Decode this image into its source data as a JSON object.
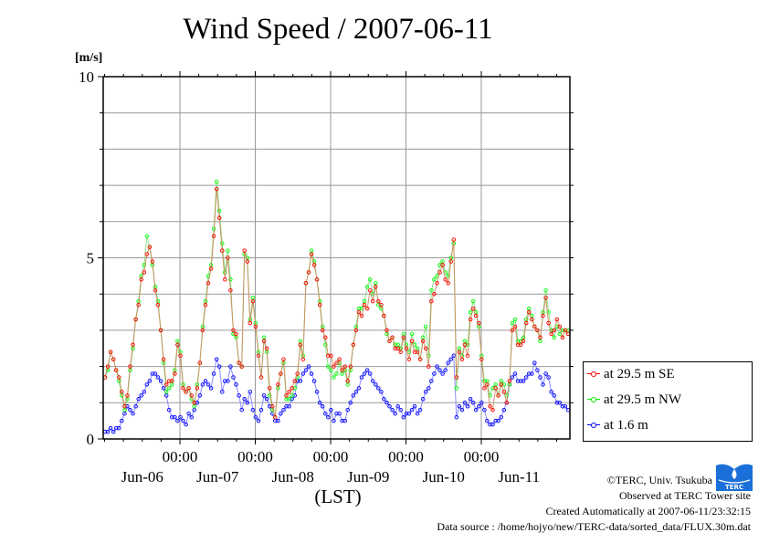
{
  "chart_data": {
    "type": "line",
    "title": "Wind Speed / 2007-06-11",
    "ylabel": "[m/s]",
    "xlabel": "(LST)",
    "ylim": [
      0,
      10
    ],
    "yticks": [
      0,
      5,
      10
    ],
    "x_unit": "hours since Jun-06 00:00",
    "xlim": [
      0,
      150
    ],
    "x_major_ticks": [
      {
        "hour": 24,
        "label": "00:00"
      },
      {
        "hour": 48,
        "label": "00:00"
      },
      {
        "hour": 72,
        "label": "00:00"
      },
      {
        "hour": 96,
        "label": "00:00"
      },
      {
        "hour": 120,
        "label": "00:00"
      }
    ],
    "day_labels": [
      {
        "hour": 10,
        "label": "Jun-06"
      },
      {
        "hour": 34,
        "label": "Jun-07"
      },
      {
        "hour": 58,
        "label": "Jun-08"
      },
      {
        "hour": 82,
        "label": "Jun-09"
      },
      {
        "hour": 106,
        "label": "Jun-10"
      },
      {
        "hour": 130,
        "label": "Jun-11"
      }
    ],
    "grid": true,
    "legend_position": "right-bottom-outside",
    "series": [
      {
        "name": "at 29.5 m SE",
        "color": "#ff0000",
        "values": [
          1.7,
          2.0,
          2.4,
          2.2,
          1.9,
          1.7,
          1.3,
          0.9,
          1.2,
          2.0,
          2.6,
          3.3,
          3.7,
          4.4,
          4.6,
          5.1,
          5.3,
          4.9,
          4.1,
          3.7,
          3.0,
          2.2,
          1.5,
          1.6,
          1.6,
          1.8,
          2.6,
          2.3,
          1.4,
          1.3,
          1.4,
          1.2,
          1.0,
          1.4,
          2.1,
          3.0,
          3.7,
          4.3,
          4.7,
          5.6,
          6.9,
          6.1,
          5.2,
          4.4,
          5.0,
          4.1,
          3.0,
          2.9,
          2.1,
          2.0,
          5.2,
          4.9,
          3.2,
          3.8,
          3.1,
          2.3,
          1.7,
          2.7,
          2.5,
          1.4,
          0.9,
          0.6,
          1.5,
          1.8,
          2.2,
          1.2,
          1.3,
          1.4,
          1.6,
          1.8,
          2.6,
          2.2,
          4.3,
          4.6,
          5.1,
          4.8,
          4.4,
          3.7,
          3.0,
          2.8,
          2.3,
          2.3,
          2.0,
          2.1,
          2.2,
          1.9,
          2.0,
          1.6,
          2.0,
          2.6,
          3.0,
          3.5,
          3.4,
          3.7,
          3.6,
          4.1,
          3.8,
          4.2,
          3.8,
          3.7,
          3.4,
          3.0,
          2.7,
          2.8,
          2.5,
          2.5,
          2.4,
          2.8,
          2.5,
          2.2,
          2.7,
          2.4,
          2.4,
          2.2,
          2.7,
          2.5,
          2.0,
          3.8,
          4.0,
          4.3,
          4.6,
          4.8,
          4.4,
          4.3,
          4.9,
          5.5,
          1.7,
          2.4,
          2.2,
          2.6,
          2.3,
          3.3,
          3.6,
          3.4,
          3.2,
          2.2,
          1.4,
          1.5,
          0.9,
          0.8,
          1.4,
          1.2,
          1.5,
          1.3,
          1.0,
          1.6,
          3.0,
          3.1,
          2.6,
          2.6,
          2.7,
          3.2,
          3.5,
          3.3,
          3.1,
          3.0,
          2.8,
          3.4,
          3.9,
          3.2,
          2.9,
          3.0,
          3.3,
          3.1,
          2.8,
          3.0,
          2.9
        ]
      },
      {
        "name": "at 29.5 m NW",
        "color": "#00ff00",
        "values": [
          1.7,
          1.9,
          2.4,
          2.2,
          1.9,
          1.6,
          1.2,
          0.8,
          1.1,
          1.9,
          2.5,
          3.3,
          3.8,
          4.5,
          4.8,
          5.6,
          5.3,
          4.8,
          4.2,
          3.8,
          3.0,
          2.1,
          1.3,
          1.4,
          1.5,
          1.9,
          2.7,
          2.4,
          1.5,
          1.3,
          1.4,
          1.1,
          0.9,
          1.5,
          2.1,
          3.1,
          3.8,
          4.5,
          4.8,
          5.8,
          7.1,
          6.3,
          5.4,
          4.6,
          5.2,
          4.4,
          2.9,
          2.8,
          2.1,
          2.0,
          5.1,
          5.0,
          3.3,
          3.9,
          3.2,
          2.4,
          1.7,
          2.8,
          2.4,
          1.2,
          0.8,
          0.6,
          1.4,
          1.8,
          2.1,
          1.1,
          1.1,
          1.2,
          1.4,
          1.7,
          2.7,
          2.3,
          4.3,
          4.6,
          5.2,
          4.9,
          4.4,
          3.8,
          3.1,
          2.6,
          2.0,
          1.9,
          1.7,
          1.8,
          2.1,
          1.8,
          1.9,
          1.5,
          1.9,
          2.6,
          3.1,
          3.6,
          3.6,
          3.8,
          4.2,
          4.4,
          4.0,
          4.3,
          3.7,
          3.6,
          3.4,
          2.9,
          2.7,
          2.8,
          2.6,
          2.6,
          2.5,
          2.9,
          2.6,
          2.4,
          2.9,
          2.6,
          2.5,
          2.2,
          2.8,
          3.1,
          2.3,
          4.1,
          4.4,
          4.5,
          4.8,
          4.9,
          4.6,
          4.5,
          5.0,
          5.4,
          1.4,
          2.5,
          2.3,
          2.7,
          2.6,
          3.5,
          3.8,
          3.5,
          3.1,
          2.3,
          1.6,
          1.6,
          1.2,
          1.4,
          1.5,
          1.2,
          1.6,
          1.5,
          1.2,
          1.5,
          3.2,
          3.3,
          2.7,
          2.7,
          2.8,
          3.3,
          3.6,
          3.4,
          3.1,
          3.0,
          2.7,
          3.5,
          4.1,
          3.5,
          3.0,
          2.8,
          3.1,
          2.9,
          3.0,
          3.0,
          3.0
        ]
      },
      {
        "name": "at 1.6 m",
        "color": "#0000ff",
        "values": [
          0.2,
          0.2,
          0.3,
          0.2,
          0.3,
          0.3,
          0.5,
          0.7,
          0.9,
          0.8,
          0.7,
          0.9,
          1.1,
          1.2,
          1.3,
          1.5,
          1.6,
          1.8,
          1.8,
          1.7,
          1.6,
          1.4,
          1.2,
          0.8,
          0.6,
          0.6,
          0.5,
          0.6,
          0.5,
          0.4,
          0.7,
          0.6,
          0.8,
          1.0,
          1.2,
          1.5,
          1.6,
          1.5,
          1.4,
          1.8,
          2.2,
          2.0,
          1.3,
          1.6,
          1.6,
          2.0,
          1.7,
          1.5,
          1.2,
          0.8,
          1.1,
          1.0,
          1.3,
          0.8,
          0.6,
          0.5,
          0.8,
          1.2,
          1.1,
          0.9,
          0.7,
          0.5,
          0.5,
          0.7,
          0.8,
          0.9,
          0.9,
          1.1,
          1.2,
          1.6,
          1.6,
          1.8,
          1.9,
          2.0,
          1.8,
          1.6,
          1.3,
          1.0,
          0.9,
          0.7,
          0.6,
          0.8,
          0.5,
          0.7,
          0.7,
          0.5,
          0.5,
          0.8,
          1.0,
          1.2,
          1.3,
          1.4,
          1.7,
          1.8,
          1.9,
          1.8,
          1.6,
          1.5,
          1.4,
          1.3,
          1.1,
          1.0,
          0.9,
          0.8,
          0.7,
          0.9,
          0.8,
          0.6,
          0.7,
          0.7,
          0.8,
          0.9,
          0.7,
          0.8,
          1.1,
          1.3,
          1.4,
          1.6,
          1.8,
          2.0,
          1.9,
          1.8,
          1.9,
          2.1,
          2.2,
          2.3,
          0.6,
          0.9,
          0.8,
          1.0,
          0.9,
          1.1,
          1.0,
          0.8,
          0.9,
          1.0,
          0.8,
          0.5,
          0.4,
          0.4,
          0.5,
          0.5,
          0.6,
          0.8,
          1.0,
          1.5,
          1.7,
          1.8,
          1.6,
          1.6,
          1.6,
          1.7,
          1.8,
          1.8,
          2.1,
          1.9,
          1.7,
          1.5,
          1.8,
          1.7,
          1.3,
          1.2,
          1.0,
          1.0,
          0.9,
          0.9,
          0.8
        ]
      }
    ]
  },
  "footer": {
    "copyright": "©TERC, Univ. Tsukuba",
    "site": "Observed at TERC Tower site",
    "created": "Created Automatically at 2007-06-11/23:32:15",
    "source": "Data source : /home/hojyo/new/TERC-data/sorted_data/FLUX.30m.dat",
    "logo_text": "TERC"
  }
}
